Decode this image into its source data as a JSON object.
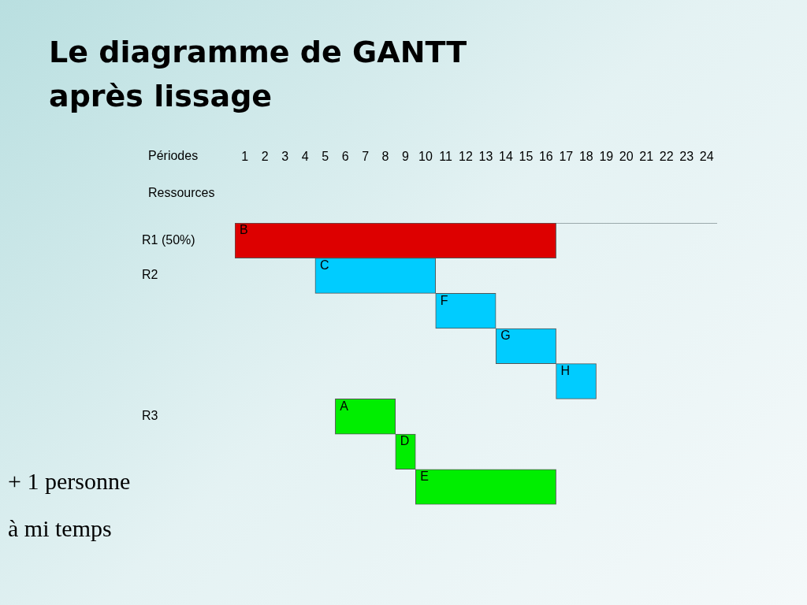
{
  "chart_data": {
    "type": "bar",
    "orientation": "horizontal",
    "title": "Le diagramme de GANTT après lissage",
    "xlabel": "Périodes",
    "ylabel": "Ressources",
    "categories": [
      "R1 (50%)",
      "R2",
      null,
      null,
      null,
      "R3",
      null,
      null
    ],
    "base": [
      0,
      4,
      10,
      13,
      16,
      5,
      8,
      9
    ],
    "values": [
      16,
      6,
      3,
      3,
      2,
      3,
      1,
      7
    ],
    "value_labels": [
      "B",
      "C",
      "F",
      "G",
      "H",
      "A",
      "D",
      "E"
    ],
    "colors": [
      "#dd0000",
      "#00ccff",
      "#00ccff",
      "#00ccff",
      "#00ccff",
      "#00ee00",
      "#00ee00",
      "#00ee00"
    ],
    "xlim": [
      0,
      24
    ],
    "xticks": [
      {
        "value": 0.5,
        "label": "1"
      },
      {
        "value": 1.5,
        "label": "2"
      },
      {
        "value": 2.5,
        "label": "3"
      },
      {
        "value": 3.5,
        "label": "4"
      },
      {
        "value": 4.5,
        "label": "5"
      },
      {
        "value": 5.5,
        "label": "6"
      },
      {
        "value": 6.5,
        "label": "7"
      },
      {
        "value": 7.5,
        "label": "8"
      },
      {
        "value": 8.5,
        "label": "9"
      },
      {
        "value": 9.5,
        "label": "10"
      },
      {
        "value": 10.5,
        "label": "11"
      },
      {
        "value": 11.5,
        "label": "12"
      },
      {
        "value": 12.5,
        "label": "13"
      },
      {
        "value": 13.5,
        "label": "14"
      },
      {
        "value": 14.5,
        "label": "15"
      },
      {
        "value": 15.5,
        "label": "16"
      },
      {
        "value": 16.5,
        "label": "17"
      },
      {
        "value": 17.5,
        "label": "18"
      },
      {
        "value": 18.5,
        "label": "19"
      },
      {
        "value": 19.5,
        "label": "20"
      },
      {
        "value": 20.5,
        "label": "21"
      },
      {
        "value": 21.5,
        "label": "22"
      },
      {
        "value": 22.5,
        "label": "23"
      },
      {
        "value": 23.5,
        "label": "24"
      }
    ],
    "grid": false,
    "legend": false,
    "annotations": [
      "+ 1 personne",
      "à mi temps"
    ]
  }
}
